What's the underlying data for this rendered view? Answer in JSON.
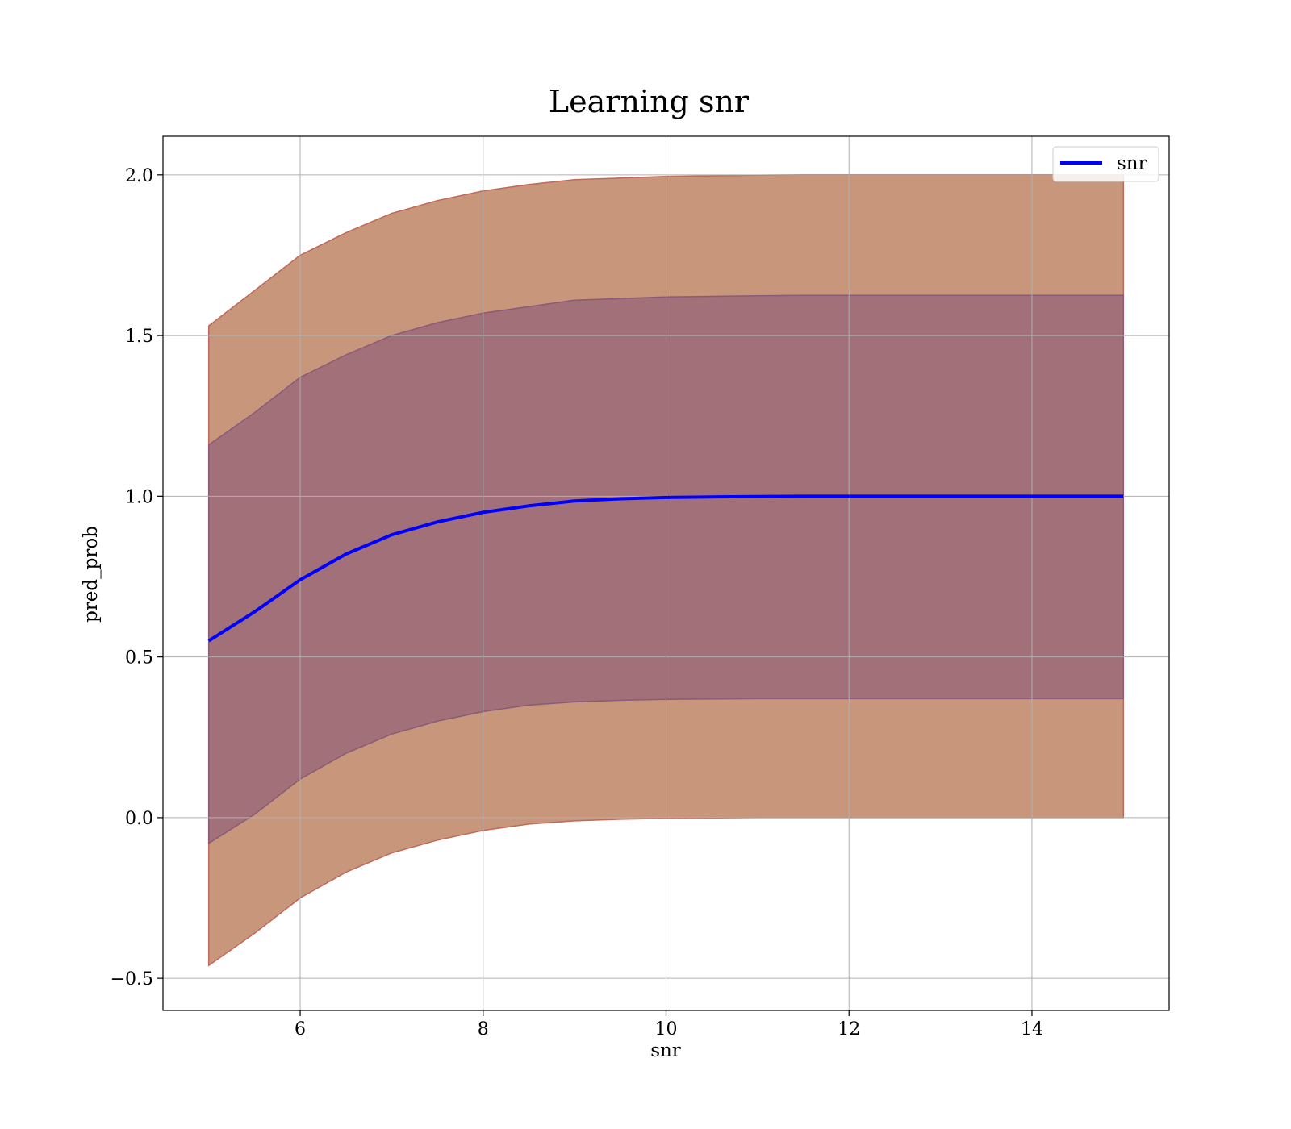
{
  "chart_data": {
    "type": "line",
    "title": "Learning snr",
    "xlabel": "snr",
    "ylabel": "pred_prob",
    "xlim": [
      4.5,
      15.5
    ],
    "ylim": [
      -0.6,
      2.12
    ],
    "xticks": [
      6,
      8,
      10,
      12,
      14
    ],
    "xtick_labels": [
      "6",
      "8",
      "10",
      "12",
      "14"
    ],
    "yticks": [
      -0.5,
      0.0,
      0.5,
      1.0,
      1.5,
      2.0
    ],
    "ytick_labels": [
      "−0.5",
      "0.0",
      "0.5",
      "1.0",
      "1.5",
      "2.0"
    ],
    "grid": true,
    "legend": {
      "placement": "upper-right",
      "entries": [
        "snr"
      ]
    },
    "x": [
      5.0,
      5.5,
      6.0,
      6.5,
      7.0,
      7.5,
      8.0,
      8.5,
      9.0,
      9.5,
      10.0,
      10.5,
      11.0,
      11.5,
      12.0,
      13.0,
      14.0,
      15.0
    ],
    "series": [
      {
        "name": "snr",
        "color": "#0000ff",
        "values": [
          0.55,
          0.64,
          0.74,
          0.82,
          0.88,
          0.92,
          0.95,
          0.97,
          0.985,
          0.992,
          0.996,
          0.998,
          0.999,
          1.0,
          1.0,
          1.0,
          1.0,
          1.0
        ]
      }
    ],
    "bands": [
      {
        "color": "#c8967a",
        "edge": "#c0685a",
        "lower": [
          -0.46,
          -0.36,
          -0.25,
          -0.17,
          -0.11,
          -0.07,
          -0.04,
          -0.02,
          -0.01,
          -0.005,
          -0.002,
          -0.001,
          0.0,
          0.0,
          0.0,
          0.0,
          0.0,
          0.0
        ],
        "upper": [
          1.53,
          1.64,
          1.75,
          1.82,
          1.88,
          1.92,
          1.95,
          1.97,
          1.985,
          1.99,
          1.995,
          1.997,
          1.999,
          2.0,
          2.0,
          2.0,
          2.0,
          2.0
        ]
      },
      {
        "color": "#a17079",
        "edge": "#8a5a78",
        "lower": [
          -0.08,
          0.01,
          0.12,
          0.2,
          0.26,
          0.3,
          0.33,
          0.35,
          0.36,
          0.365,
          0.368,
          0.369,
          0.37,
          0.37,
          0.37,
          0.37,
          0.37,
          0.37
        ],
        "upper": [
          1.16,
          1.26,
          1.37,
          1.44,
          1.5,
          1.54,
          1.57,
          1.59,
          1.61,
          1.615,
          1.62,
          1.622,
          1.624,
          1.625,
          1.625,
          1.625,
          1.625,
          1.625
        ]
      }
    ]
  }
}
